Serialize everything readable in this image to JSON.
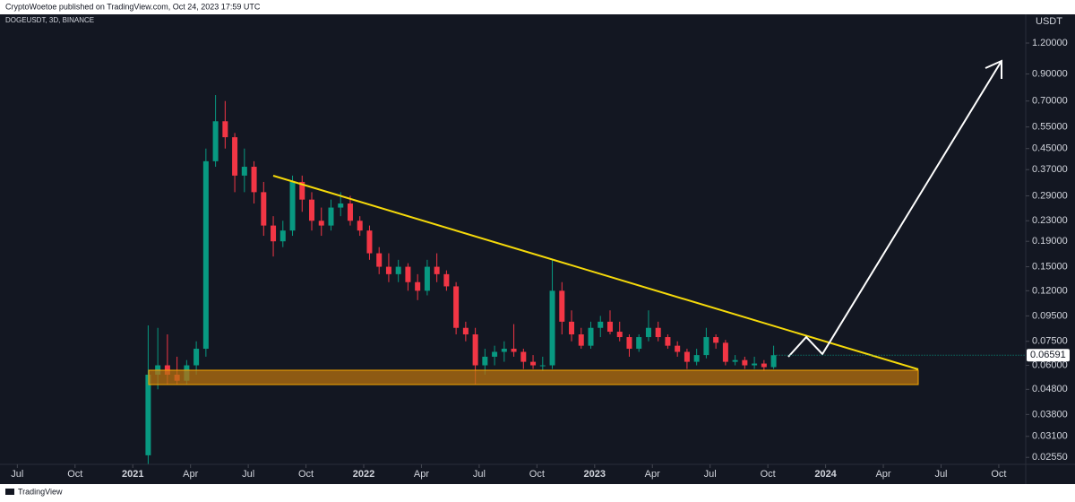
{
  "chart_data": {
    "type": "candlestick",
    "title": "CryptoWoetoe published on TradingView.com, Oct 24, 2023 17:59 UTC",
    "subtitle": "DOGEUSDT, 3D, BINANCE",
    "y_axis_label": "USDT",
    "watermark": "TradingView",
    "log_scale": true,
    "up_color": "#089981",
    "down_color": "#f23645",
    "ylim": [
      0.0239,
      1.58
    ],
    "yticks": [
      {
        "value": 1.2,
        "label": "1.20000"
      },
      {
        "value": 0.9,
        "label": "0.90000"
      },
      {
        "value": 0.7,
        "label": "0.70000"
      },
      {
        "value": 0.55,
        "label": "0.55000"
      },
      {
        "value": 0.45,
        "label": "0.45000"
      },
      {
        "value": 0.37,
        "label": "0.37000"
      },
      {
        "value": 0.29,
        "label": "0.29000"
      },
      {
        "value": 0.23,
        "label": "0.23000"
      },
      {
        "value": 0.19,
        "label": "0.19000"
      },
      {
        "value": 0.15,
        "label": "0.15000"
      },
      {
        "value": 0.12,
        "label": "0.12000"
      },
      {
        "value": 0.095,
        "label": "0.09500"
      },
      {
        "value": 0.075,
        "label": "0.07500"
      },
      {
        "value": 0.06,
        "label": "0.06000"
      },
      {
        "value": 0.048,
        "label": "0.04800"
      },
      {
        "value": 0.038,
        "label": "0.03800"
      },
      {
        "value": 0.031,
        "label": "0.03100"
      },
      {
        "value": 0.0255,
        "label": "0.02550"
      }
    ],
    "xlim": [
      -6.9,
      46.4
    ],
    "xticks": [
      {
        "value": -6,
        "label": "Jul"
      },
      {
        "value": -3,
        "label": "Oct"
      },
      {
        "value": 0,
        "label": "2021"
      },
      {
        "value": 3,
        "label": "Apr"
      },
      {
        "value": 6,
        "label": "Jul"
      },
      {
        "value": 9,
        "label": "Oct"
      },
      {
        "value": 12,
        "label": "2022"
      },
      {
        "value": 15,
        "label": "Apr"
      },
      {
        "value": 18,
        "label": "Jul"
      },
      {
        "value": 21,
        "label": "Oct"
      },
      {
        "value": 24,
        "label": "2023"
      },
      {
        "value": 27,
        "label": "Apr"
      },
      {
        "value": 30,
        "label": "Jul"
      },
      {
        "value": 33,
        "label": "Oct"
      },
      {
        "value": 36,
        "label": "2024"
      },
      {
        "value": 39,
        "label": "Apr"
      },
      {
        "value": 42,
        "label": "Jul"
      },
      {
        "value": 45,
        "label": "Oct"
      }
    ],
    "last_price": 0.06591,
    "x": [
      0.8,
      1.3,
      1.8,
      2.3,
      2.8,
      3.3,
      3.8,
      4.3,
      4.8,
      5.3,
      5.8,
      6.3,
      6.8,
      7.3,
      7.8,
      8.3,
      8.8,
      9.3,
      9.8,
      10.3,
      10.8,
      11.3,
      11.8,
      12.3,
      12.8,
      13.3,
      13.8,
      14.3,
      14.8,
      15.3,
      15.8,
      16.3,
      16.8,
      17.3,
      17.8,
      18.3,
      18.8,
      19.3,
      19.8,
      20.3,
      20.8,
      21.3,
      21.8,
      22.3,
      22.8,
      23.3,
      23.8,
      24.3,
      24.8,
      25.3,
      25.8,
      26.3,
      26.8,
      27.3,
      27.8,
      28.3,
      28.8,
      29.3,
      29.8,
      30.3,
      30.8,
      31.3,
      31.8,
      32.3,
      32.8,
      33.3
    ],
    "open": [
      0.026,
      0.055,
      0.06,
      0.055,
      0.052,
      0.06,
      0.07,
      0.4,
      0.58,
      0.5,
      0.35,
      0.38,
      0.3,
      0.22,
      0.19,
      0.21,
      0.33,
      0.28,
      0.23,
      0.22,
      0.26,
      0.27,
      0.23,
      0.21,
      0.17,
      0.15,
      0.14,
      0.15,
      0.13,
      0.12,
      0.15,
      0.14,
      0.125,
      0.085,
      0.08,
      0.06,
      0.065,
      0.068,
      0.07,
      0.068,
      0.062,
      0.06,
      0.06,
      0.12,
      0.09,
      0.08,
      0.072,
      0.085,
      0.09,
      0.082,
      0.078,
      0.07,
      0.078,
      0.085,
      0.078,
      0.072,
      0.068,
      0.062,
      0.066,
      0.078,
      0.074,
      0.062,
      0.063,
      0.06,
      0.061,
      0.059
    ],
    "high": [
      0.087,
      0.085,
      0.08,
      0.065,
      0.063,
      0.075,
      0.45,
      0.74,
      0.7,
      0.52,
      0.45,
      0.4,
      0.33,
      0.24,
      0.23,
      0.35,
      0.35,
      0.3,
      0.26,
      0.28,
      0.3,
      0.29,
      0.24,
      0.22,
      0.18,
      0.17,
      0.16,
      0.155,
      0.14,
      0.16,
      0.17,
      0.145,
      0.13,
      0.09,
      0.085,
      0.07,
      0.072,
      0.075,
      0.088,
      0.07,
      0.066,
      0.065,
      0.16,
      0.13,
      0.1,
      0.085,
      0.09,
      0.095,
      0.1,
      0.09,
      0.08,
      0.08,
      0.1,
      0.09,
      0.08,
      0.075,
      0.07,
      0.07,
      0.085,
      0.08,
      0.076,
      0.066,
      0.065,
      0.065,
      0.063,
      0.072
    ],
    "low": [
      0.024,
      0.048,
      0.05,
      0.05,
      0.05,
      0.055,
      0.065,
      0.38,
      0.45,
      0.3,
      0.3,
      0.27,
      0.2,
      0.165,
      0.18,
      0.2,
      0.25,
      0.21,
      0.2,
      0.21,
      0.24,
      0.22,
      0.2,
      0.16,
      0.14,
      0.13,
      0.13,
      0.12,
      0.11,
      0.115,
      0.13,
      0.12,
      0.08,
      0.075,
      0.05,
      0.055,
      0.06,
      0.062,
      0.065,
      0.058,
      0.058,
      0.057,
      0.058,
      0.08,
      0.075,
      0.07,
      0.07,
      0.078,
      0.08,
      0.075,
      0.065,
      0.068,
      0.075,
      0.075,
      0.07,
      0.065,
      0.058,
      0.06,
      0.064,
      0.07,
      0.06,
      0.06,
      0.058,
      0.058,
      0.057,
      0.058
    ],
    "close": [
      0.055,
      0.06,
      0.055,
      0.052,
      0.06,
      0.07,
      0.4,
      0.58,
      0.5,
      0.35,
      0.38,
      0.3,
      0.22,
      0.19,
      0.21,
      0.33,
      0.28,
      0.23,
      0.22,
      0.26,
      0.27,
      0.23,
      0.21,
      0.17,
      0.15,
      0.14,
      0.15,
      0.13,
      0.12,
      0.15,
      0.14,
      0.125,
      0.085,
      0.08,
      0.06,
      0.065,
      0.068,
      0.07,
      0.068,
      0.062,
      0.06,
      0.06,
      0.12,
      0.09,
      0.08,
      0.072,
      0.085,
      0.09,
      0.082,
      0.078,
      0.07,
      0.078,
      0.085,
      0.078,
      0.072,
      0.068,
      0.062,
      0.066,
      0.078,
      0.074,
      0.062,
      0.063,
      0.06,
      0.061,
      0.059,
      0.06591
    ]
  }
}
